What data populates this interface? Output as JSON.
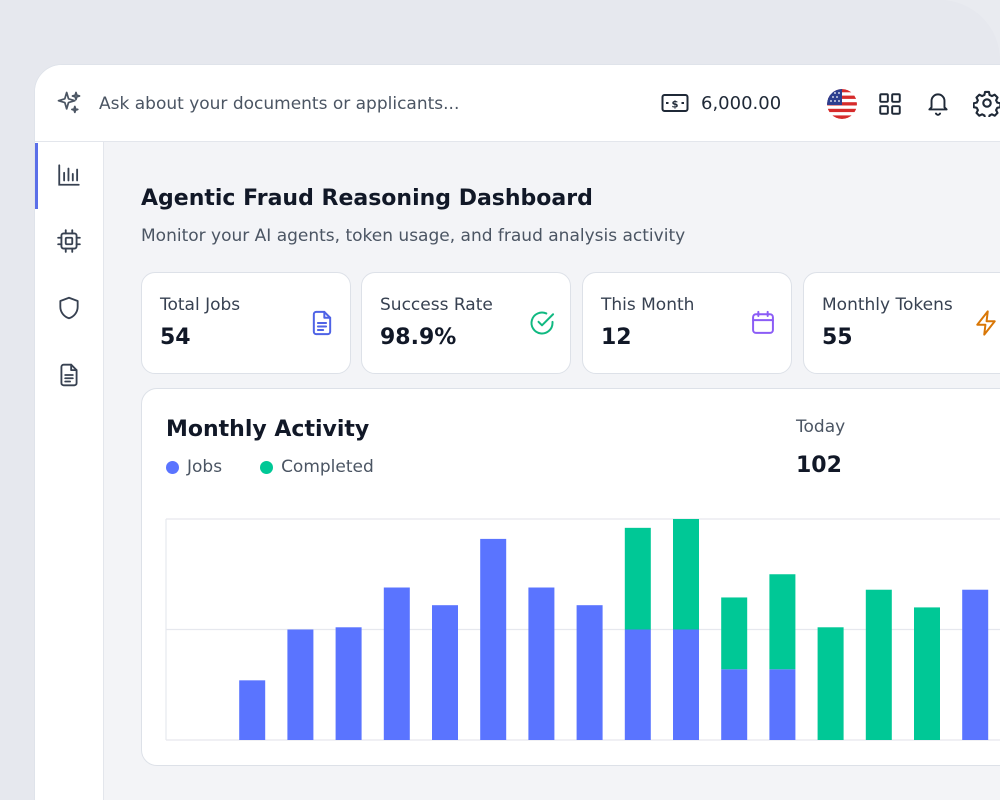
{
  "search": {
    "placeholder": "Ask about your documents or applicants..."
  },
  "header": {
    "balance": "6,000.00"
  },
  "sidebar": {
    "items": [
      {
        "name": "analytics",
        "icon": "bar-chart-icon",
        "active": true
      },
      {
        "name": "agents",
        "icon": "cpu-chip-icon",
        "active": false
      },
      {
        "name": "security",
        "icon": "shield-icon",
        "active": false
      },
      {
        "name": "documents",
        "icon": "document-icon",
        "active": false
      }
    ]
  },
  "page": {
    "title": "Agentic Fraud Reasoning Dashboard",
    "subtitle": "Monitor your AI agents, token usage, and fraud analysis activity"
  },
  "stats": [
    {
      "label": "Total Jobs",
      "value": "54",
      "icon": "document-icon",
      "color": "#4f63e6"
    },
    {
      "label": "Success Rate",
      "value": "98.9%",
      "icon": "check-circle-icon",
      "color": "#10b981"
    },
    {
      "label": "This Month",
      "value": "12",
      "icon": "calendar-icon",
      "color": "#8b5cf6"
    },
    {
      "label": "Monthly Tokens",
      "value": "55",
      "icon": "lightning-icon",
      "color": "#d97706"
    }
  ],
  "activity": {
    "title": "Monthly Activity",
    "legend": {
      "jobs": "Jobs",
      "completed": "Completed"
    },
    "today_label": "Today",
    "today_value": "102"
  },
  "colors": {
    "jobs": "#5a74ff",
    "completed": "#00c896",
    "grid": "#e6e8ee",
    "accent": "#5b6fe8"
  },
  "chart_data": {
    "type": "bar",
    "stacked": true,
    "ylim": [
      0,
      2
    ],
    "grid": true,
    "series": [
      {
        "name": "Jobs",
        "values": [
          0,
          0.54,
          1.0,
          1.02,
          1.38,
          1.22,
          1.82,
          1.38,
          1.22,
          1.0,
          1.0,
          0.64,
          0.64,
          0,
          0,
          0,
          1.36
        ]
      },
      {
        "name": "Completed",
        "values": [
          0,
          0,
          0,
          0,
          0,
          0,
          0,
          0,
          0,
          0.92,
          1.0,
          0.65,
          0.86,
          1.02,
          1.36,
          1.2,
          0
        ]
      }
    ]
  }
}
